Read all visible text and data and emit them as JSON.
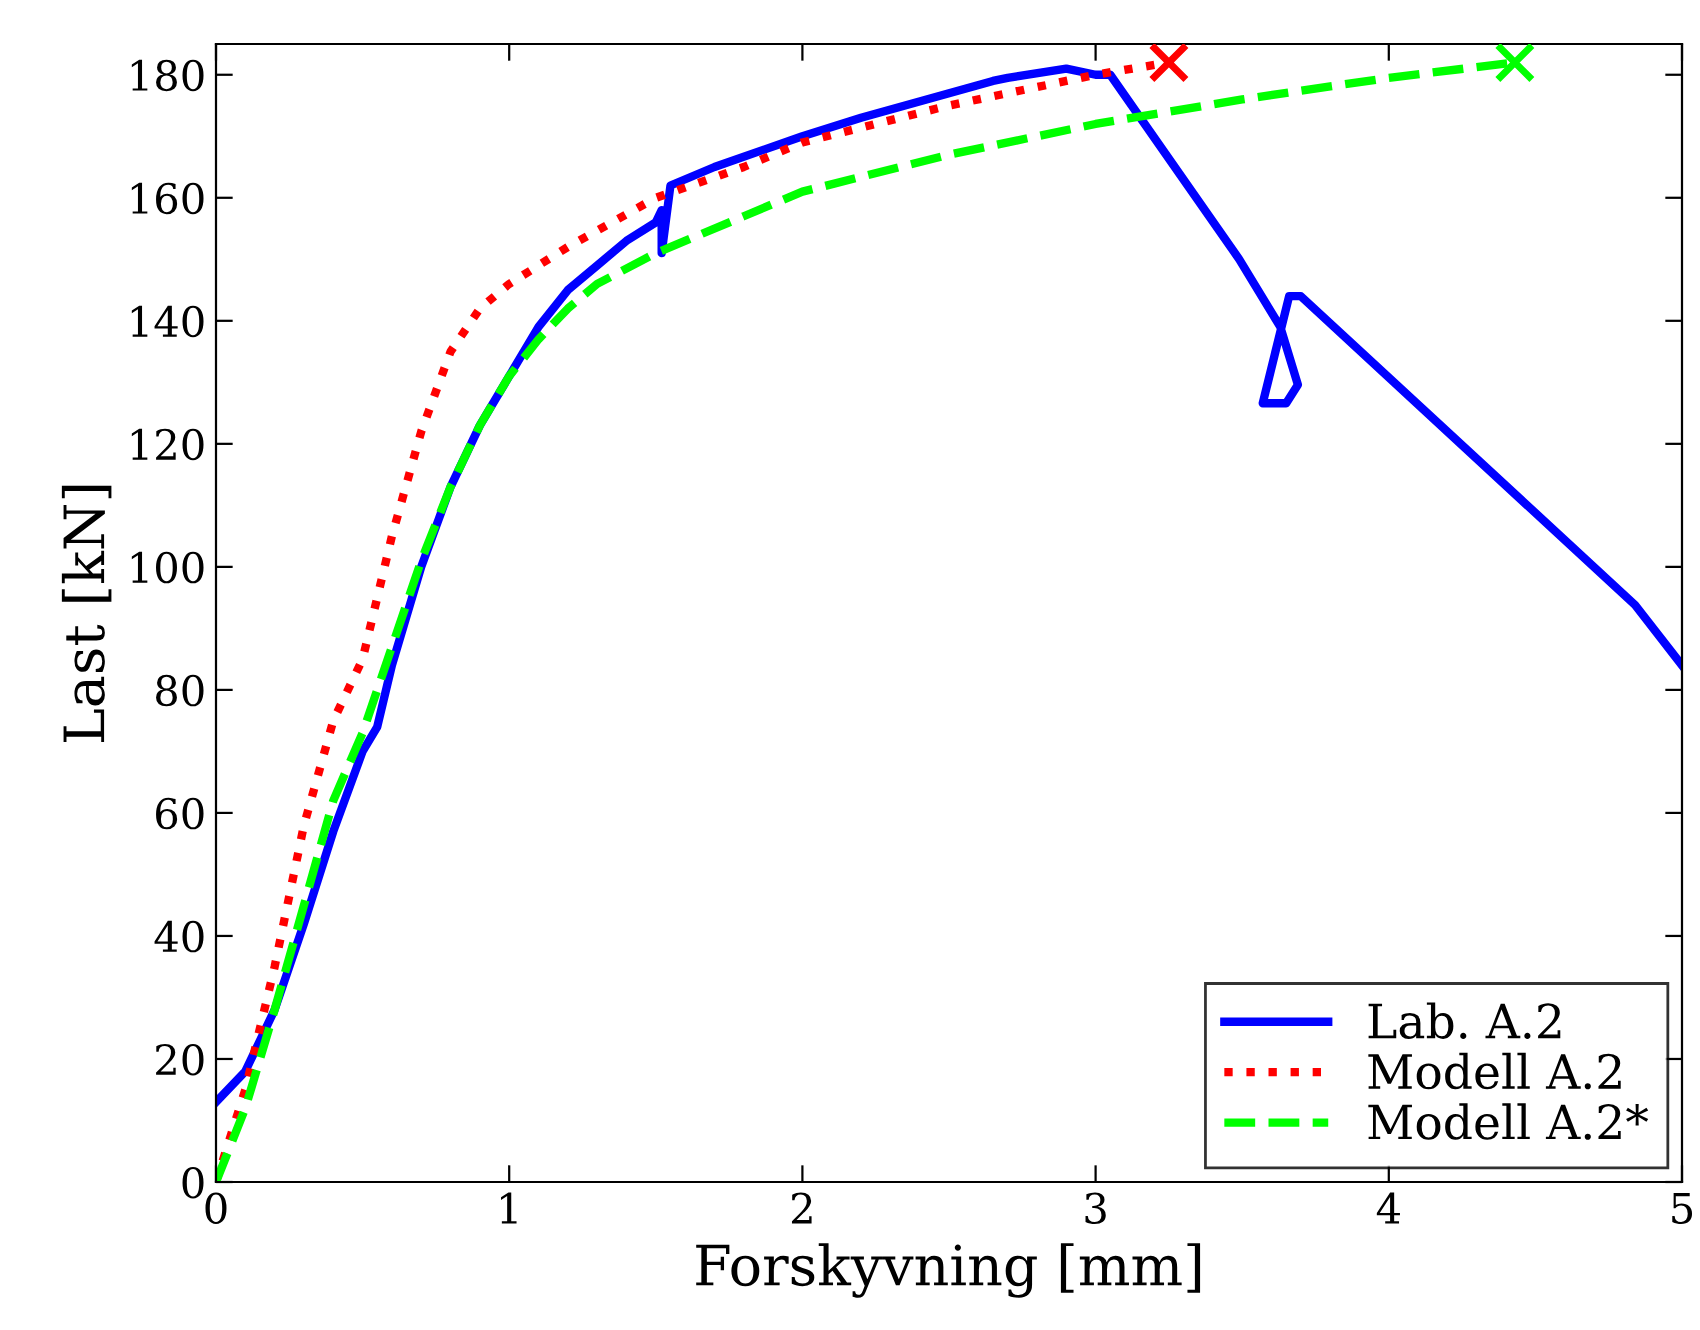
{
  "chart_data": {
    "type": "line",
    "xlabel": "Forskyvning [mm]",
    "ylabel": "Last [kN]",
    "xlim": [
      0,
      5
    ],
    "ylim": [
      0,
      185
    ],
    "xticks": [
      0,
      1,
      2,
      3,
      4,
      5
    ],
    "yticks": [
      0,
      20,
      40,
      60,
      80,
      100,
      120,
      140,
      160,
      180
    ],
    "grid": false,
    "legend": "bottom right",
    "series": [
      {
        "name": "Lab. A.2",
        "color": "#0000ff",
        "line_style": "solid",
        "x": [
          0,
          0.1,
          0.2,
          0.3,
          0.4,
          0.5,
          0.55,
          0.6,
          0.7,
          0.8,
          0.9,
          1.0,
          1.1,
          1.2,
          1.3,
          1.4,
          1.5,
          1.52,
          1.52,
          1.55,
          1.7,
          2.0,
          2.2,
          2.5,
          2.65,
          2.7,
          2.9,
          3.0,
          3.05,
          3.49,
          3.63,
          3.69,
          3.65,
          3.57,
          3.66,
          3.7,
          4.84,
          5
        ],
        "values": [
          13,
          18,
          28,
          42,
          57,
          70,
          74,
          84,
          100,
          113,
          123,
          131,
          139,
          145,
          149,
          153,
          156,
          158,
          151,
          162,
          165,
          170,
          173,
          177,
          179,
          179.5,
          181,
          180,
          180,
          150,
          139,
          129.6,
          126.6,
          126.6,
          144,
          144,
          93.8,
          84
        ]
      },
      {
        "name": "Modell A.2",
        "color": "#ff0000",
        "line_style": "dotted",
        "x": [
          0,
          0.1,
          0.2,
          0.3,
          0.4,
          0.5,
          0.6,
          0.7,
          0.8,
          0.9,
          1.0,
          1.2,
          1.5,
          1.8,
          2.0,
          2.5,
          3.0,
          3.25
        ],
        "values": [
          0,
          15,
          35,
          58,
          75,
          85,
          105,
          122,
          135,
          142,
          146,
          152,
          160,
          165,
          169,
          175,
          180,
          182
        ]
      },
      {
        "name": "Modell A.2*",
        "color": "#00ff00",
        "line_style": "dashed",
        "x": [
          0,
          0.1,
          0.2,
          0.3,
          0.4,
          0.5,
          0.6,
          0.7,
          0.8,
          0.9,
          1.0,
          1.1,
          1.2,
          1.3,
          1.5,
          1.8,
          2.0,
          2.5,
          3.0,
          3.5,
          4.0,
          4.43
        ],
        "values": [
          0,
          12,
          28,
          45,
          62,
          73,
          87,
          101,
          113,
          123,
          131,
          137,
          142,
          146,
          151,
          157,
          161,
          167,
          172,
          176,
          179.5,
          182
        ]
      },
      {
        "type": "scatter",
        "marker": "cross",
        "color": "#ff0000",
        "x": [
          3.25
        ],
        "values": [
          182
        ]
      },
      {
        "type": "scatter",
        "marker": "cross",
        "color": "#00ff00",
        "x": [
          4.43
        ],
        "values": [
          182
        ]
      }
    ]
  }
}
